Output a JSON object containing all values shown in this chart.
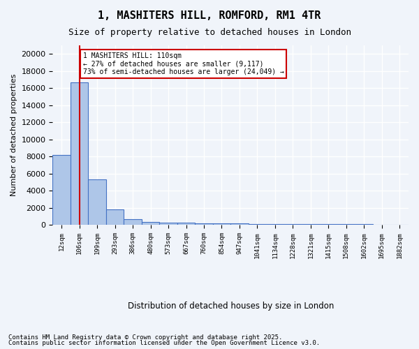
{
  "title1": "1, MASHITERS HILL, ROMFORD, RM1 4TR",
  "title2": "Size of property relative to detached houses in London",
  "xlabel": "Distribution of detached houses by size in London",
  "ylabel": "Number of detached properties",
  "bar_values": [
    8200,
    16700,
    5350,
    1800,
    650,
    350,
    270,
    230,
    200,
    175,
    150,
    130,
    110,
    95,
    85,
    75,
    65,
    55,
    45,
    30
  ],
  "x_tick_labels": [
    "12sqm",
    "106sqm",
    "199sqm",
    "293sqm",
    "386sqm",
    "480sqm",
    "573sqm",
    "667sqm",
    "760sqm",
    "854sqm",
    "947sqm",
    "1041sqm",
    "1134sqm",
    "1228sqm",
    "1321sqm",
    "1415sqm",
    "1508sqm",
    "1602sqm",
    "1695sqm",
    "1882sqm"
  ],
  "bar_color": "#aec6e8",
  "bar_edge_color": "#4472c4",
  "vline_x": 1,
  "vline_color": "#cc0000",
  "annotation_text": "1 MASHITERS HILL: 110sqm\n← 27% of detached houses are smaller (9,117)\n73% of semi-detached houses are larger (24,049) →",
  "annotation_box_color": "#cc0000",
  "ylim": [
    0,
    21000
  ],
  "yticks": [
    0,
    2000,
    4000,
    6000,
    8000,
    10000,
    12000,
    14000,
    16000,
    18000,
    20000
  ],
  "footer1": "Contains HM Land Registry data © Crown copyright and database right 2025.",
  "footer2": "Contains public sector information licensed under the Open Government Licence v3.0.",
  "bg_color": "#f0f4fa",
  "grid_color": "#ffffff"
}
